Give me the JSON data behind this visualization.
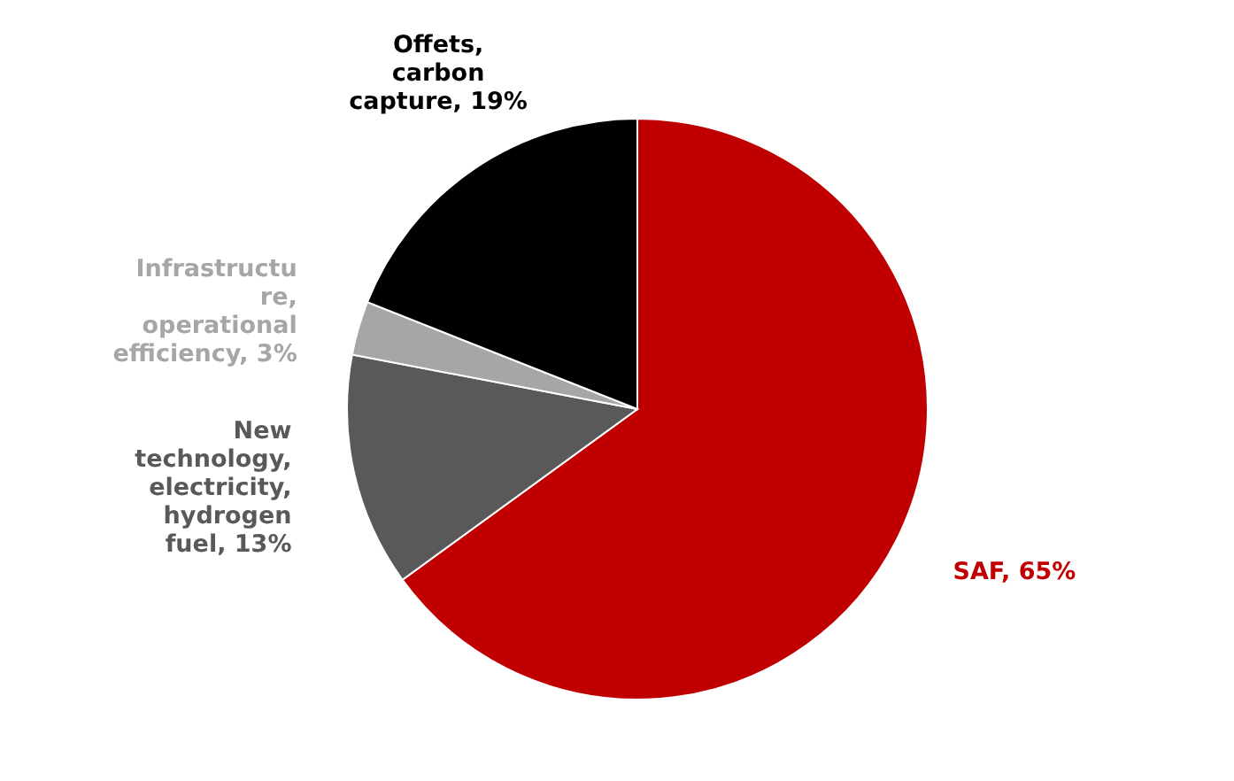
{
  "chart_data": {
    "type": "pie",
    "categories": [
      "SAF",
      "New technology, electricity, hydrogen fuel",
      "Infrastructure, operational efficiency",
      "Offets, carbon capture"
    ],
    "values": [
      65,
      13,
      3,
      19
    ],
    "value_labels": [
      "65%",
      "13%",
      "3%",
      "19%"
    ],
    "colors": [
      "#c00000",
      "#595959",
      "#a6a6a6",
      "#000000"
    ]
  }
}
